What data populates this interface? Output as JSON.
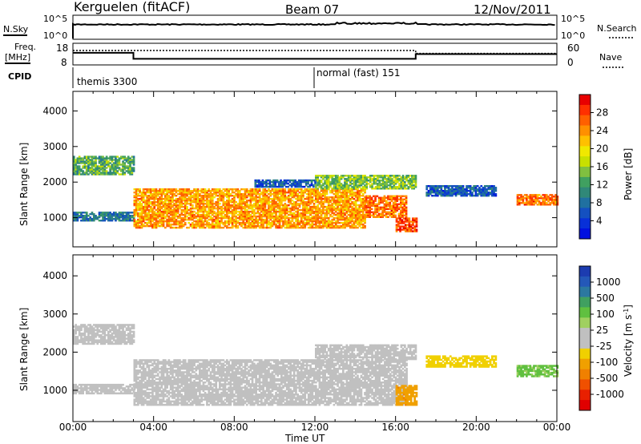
{
  "header": {
    "station": "Kerguelen (fitACF)",
    "beam": "Beam 07",
    "date": "12/Nov/2011"
  },
  "noise_panel": {
    "left_label": "N.Sky",
    "right_label": "N.Search",
    "left_ticks": [
      "10^5",
      "10^0"
    ],
    "right_ticks": [
      "10^5",
      "10^0"
    ]
  },
  "freq_panel": {
    "left_label_line1": "Freq.",
    "left_label_line2": "[MHz]",
    "right_label": "Nave",
    "left_ticks": [
      "18",
      "8"
    ],
    "right_ticks": [
      "60",
      "0"
    ],
    "freq_steps": [
      {
        "t": 0.0,
        "f": 13.6
      },
      {
        "t": 3.0,
        "f": 10.8
      },
      {
        "t": 17.0,
        "f": 13.0
      },
      {
        "t": 24.0,
        "f": 13.0
      }
    ],
    "nave_steps": [
      {
        "t": 0.0,
        "n": 40
      },
      {
        "t": 17.0,
        "n": 32
      },
      {
        "t": 24.0,
        "n": 32
      }
    ]
  },
  "cpid": {
    "label": "CPID",
    "segments": [
      {
        "start": 0.0,
        "end": 12.0,
        "text": "themis 3300"
      },
      {
        "start": 12.0,
        "end": 24.0,
        "text": "normal (fast) 151"
      }
    ]
  },
  "colorbars": {
    "power": {
      "label": "Power [dB]",
      "ticks": [
        "28",
        "24",
        "20",
        "16",
        "12",
        "8",
        "4"
      ],
      "colors": [
        "#e80000",
        "#ff3000",
        "#ff6000",
        "#ff9000",
        "#ffc000",
        "#f0e800",
        "#c8e000",
        "#80c040",
        "#40a060",
        "#308878",
        "#2070a0",
        "#1450c0",
        "#0830d8",
        "#0010e0"
      ]
    },
    "velocity": {
      "label_main": "Velocity [m s",
      "label_sup": "-1",
      "label_end": "]",
      "ticks": [
        "1000",
        "500",
        "100",
        "25",
        "-25",
        "-100",
        "-500",
        "-1000"
      ],
      "colors": [
        "#1c3cb0",
        "#2458b8",
        "#2c78a0",
        "#40a060",
        "#60c040",
        "#a0d060",
        "#c0c0c0",
        "#c0c0c0",
        "#f0d000",
        "#f0a000",
        "#f08000",
        "#f05000",
        "#e82000",
        "#e00000"
      ]
    }
  },
  "chart_data": {
    "type": "heatmap",
    "x_axis": {
      "label": "Time UT",
      "range": [
        0,
        24
      ],
      "tick_labels": [
        "00:00",
        "04:00",
        "08:00",
        "12:00",
        "16:00",
        "20:00",
        "00:00"
      ]
    },
    "panels": [
      {
        "quantity": "Power",
        "unit": "dB",
        "ylabel": "Slant Range [km]",
        "ylim": [
          180,
          4550
        ],
        "y_ticks": [
          1000,
          2000,
          3000,
          4000
        ],
        "clim": [
          0,
          30
        ],
        "regions": [
          {
            "t0": 0.0,
            "t1": 3.0,
            "r0": 900,
            "r1": 1150,
            "value": 8
          },
          {
            "t0": 3.0,
            "t1": 14.5,
            "r0": 700,
            "r1": 1800,
            "value": 22
          },
          {
            "t0": 14.5,
            "t1": 16.5,
            "r0": 1000,
            "r1": 1600,
            "value": 24
          },
          {
            "t0": 16.0,
            "t1": 17.0,
            "r0": 600,
            "r1": 1000,
            "value": 26
          },
          {
            "t0": 0.0,
            "t1": 3.0,
            "r0": 2200,
            "r1": 2700,
            "value": 12
          },
          {
            "t0": 9.0,
            "t1": 12.0,
            "r0": 1850,
            "r1": 2050,
            "value": 6
          },
          {
            "t0": 12.0,
            "t1": 17.0,
            "r0": 1800,
            "r1": 2200,
            "value": 14
          },
          {
            "t0": 22.0,
            "t1": 24.0,
            "r0": 1350,
            "r1": 1650,
            "value": 24
          },
          {
            "t0": 17.5,
            "t1": 21.0,
            "r0": 1600,
            "r1": 1900,
            "value": 6
          }
        ]
      },
      {
        "quantity": "Velocity",
        "unit": "m s-1",
        "ylabel": "Slant Range [km]",
        "ylim": [
          180,
          4550
        ],
        "y_ticks": [
          1000,
          2000,
          3000,
          4000
        ],
        "clim": [
          -1000,
          1000
        ],
        "regions": [
          {
            "t0": 0.0,
            "t1": 3.0,
            "r0": 900,
            "r1": 1150,
            "value": 0
          },
          {
            "t0": 3.0,
            "t1": 16.5,
            "r0": 600,
            "r1": 1800,
            "value": 0
          },
          {
            "t0": 16.0,
            "t1": 17.0,
            "r0": 600,
            "r1": 1100,
            "value": -400
          },
          {
            "t0": 0.0,
            "t1": 3.0,
            "r0": 2200,
            "r1": 2700,
            "value": 0
          },
          {
            "t0": 12.0,
            "t1": 17.0,
            "r0": 1800,
            "r1": 2200,
            "value": 60
          },
          {
            "t0": 22.0,
            "t1": 24.0,
            "r0": 1350,
            "r1": 1650,
            "value": 300
          },
          {
            "t0": 17.5,
            "t1": 21.0,
            "r0": 1600,
            "r1": 1900,
            "value": -200
          }
        ]
      }
    ]
  }
}
